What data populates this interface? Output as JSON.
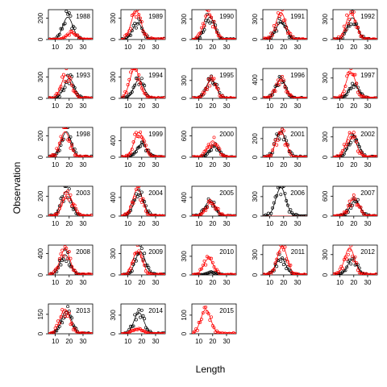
{
  "chart_data": {
    "type": "scatter",
    "xlabel": "Length",
    "ylabel": "Observation",
    "x_ticks": [
      10,
      20,
      30
    ],
    "xlim": [
      5,
      37
    ],
    "series_style": {
      "black": {
        "color": "#000000"
      },
      "red": {
        "color": "#ff0000"
      }
    },
    "panels": [
      {
        "year": "1988",
        "yticks": [
          0,
          200
        ],
        "ymax": 280,
        "black_peak": 210,
        "black_mu": 19,
        "red_peak": 60,
        "red_mu": 22
      },
      {
        "year": "1989",
        "yticks": [
          0,
          300
        ],
        "ymax": 420,
        "black_peak": 230,
        "black_mu": 17,
        "red_peak": 400,
        "red_mu": 16
      },
      {
        "year": "1990",
        "yticks": [
          0,
          300
        ],
        "ymax": 440,
        "black_peak": 330,
        "black_mu": 18,
        "red_peak": 380,
        "red_mu": 17
      },
      {
        "year": "1991",
        "yticks": [
          0,
          300
        ],
        "ymax": 440,
        "black_peak": 250,
        "black_mu": 18,
        "red_peak": 400,
        "red_mu": 18
      },
      {
        "year": "1992",
        "yticks": [
          0,
          300
        ],
        "ymax": 440,
        "black_peak": 320,
        "black_mu": 19,
        "red_peak": 390,
        "red_mu": 18
      },
      {
        "year": "1993",
        "yticks": [
          0,
          300
        ],
        "ymax": 420,
        "black_peak": 280,
        "black_mu": 20,
        "red_peak": 330,
        "red_mu": 18
      },
      {
        "year": "1994",
        "yticks": [
          0,
          300
        ],
        "ymax": 420,
        "black_peak": 260,
        "black_mu": 18,
        "red_peak": 420,
        "red_mu": 15
      },
      {
        "year": "1995",
        "yticks": [
          0,
          300
        ],
        "ymax": 500,
        "black_peak": 320,
        "black_mu": 19,
        "red_peak": 300,
        "red_mu": 19
      },
      {
        "year": "1996",
        "yticks": [
          0,
          400
        ],
        "ymax": 640,
        "black_peak": 420,
        "black_mu": 18,
        "red_peak": 390,
        "red_mu": 18
      },
      {
        "year": "1997",
        "yticks": [
          0,
          300
        ],
        "ymax": 440,
        "black_peak": 200,
        "black_mu": 20,
        "red_peak": 380,
        "red_mu": 18
      },
      {
        "year": "1998",
        "yticks": [
          0,
          200
        ],
        "ymax": 280,
        "black_peak": 240,
        "black_mu": 18,
        "red_peak": 240,
        "red_mu": 17
      },
      {
        "year": "1999",
        "yticks": [
          0,
          400
        ],
        "ymax": 720,
        "black_peak": 320,
        "black_mu": 20,
        "red_peak": 600,
        "red_mu": 18
      },
      {
        "year": "2000",
        "yticks": [
          0,
          600
        ],
        "ymax": 840,
        "black_peak": 300,
        "black_mu": 21,
        "red_peak": 460,
        "red_mu": 20
      },
      {
        "year": "2001",
        "yticks": [
          0,
          200
        ],
        "ymax": 320,
        "black_peak": 280,
        "black_mu": 18,
        "red_peak": 270,
        "red_mu": 18
      },
      {
        "year": "2002",
        "yticks": [
          0,
          300
        ],
        "ymax": 440,
        "black_peak": 320,
        "black_mu": 20,
        "red_peak": 360,
        "red_mu": 18
      },
      {
        "year": "2003",
        "yticks": [
          0,
          200
        ],
        "ymax": 300,
        "black_peak": 250,
        "black_mu": 18,
        "red_peak": 220,
        "red_mu": 19
      },
      {
        "year": "2004",
        "yticks": [
          0,
          400
        ],
        "ymax": 640,
        "black_peak": 480,
        "black_mu": 18,
        "red_peak": 580,
        "red_mu": 17
      },
      {
        "year": "2005",
        "yticks": [
          0,
          400
        ],
        "ymax": 640,
        "black_peak": 320,
        "black_mu": 18,
        "red_peak": 300,
        "red_mu": 19
      },
      {
        "year": "2006",
        "yticks": [
          0,
          300
        ],
        "ymax": 460,
        "black_peak": 440,
        "black_mu": 18,
        "red_peak": 0,
        "red_mu": 18
      },
      {
        "year": "2007",
        "yticks": [
          0,
          600
        ],
        "ymax": 900,
        "black_peak": 480,
        "black_mu": 21,
        "red_peak": 520,
        "red_mu": 20
      },
      {
        "year": "2008",
        "yticks": [
          0,
          400
        ],
        "ymax": 560,
        "black_peak": 380,
        "black_mu": 17,
        "red_peak": 480,
        "red_mu": 17
      },
      {
        "year": "2009",
        "yticks": [
          0,
          300
        ],
        "ymax": 420,
        "black_peak": 330,
        "black_mu": 19,
        "red_peak": 330,
        "red_mu": 17
      },
      {
        "year": "2010",
        "yticks": [
          0,
          300
        ],
        "ymax": 480,
        "black_peak": 40,
        "black_mu": 20,
        "red_peak": 260,
        "red_mu": 17
      },
      {
        "year": "2011",
        "yticks": [
          0,
          300
        ],
        "ymax": 440,
        "black_peak": 250,
        "black_mu": 18,
        "red_peak": 420,
        "red_mu": 19
      },
      {
        "year": "2012",
        "yticks": [
          0,
          300
        ],
        "ymax": 440,
        "black_peak": 220,
        "black_mu": 19,
        "red_peak": 400,
        "red_mu": 17
      },
      {
        "year": "2013",
        "yticks": [
          0,
          150
        ],
        "ymax": 230,
        "black_peak": 180,
        "black_mu": 18,
        "red_peak": 190,
        "red_mu": 17
      },
      {
        "year": "2014",
        "yticks": [
          0,
          300
        ],
        "ymax": 480,
        "black_peak": 340,
        "black_mu": 18,
        "red_peak": 80,
        "red_mu": 17
      },
      {
        "year": "2015",
        "yticks": [
          0,
          100
        ],
        "ymax": 160,
        "black_peak": 0,
        "black_mu": 18,
        "red_peak": 130,
        "red_mu": 15
      }
    ]
  }
}
